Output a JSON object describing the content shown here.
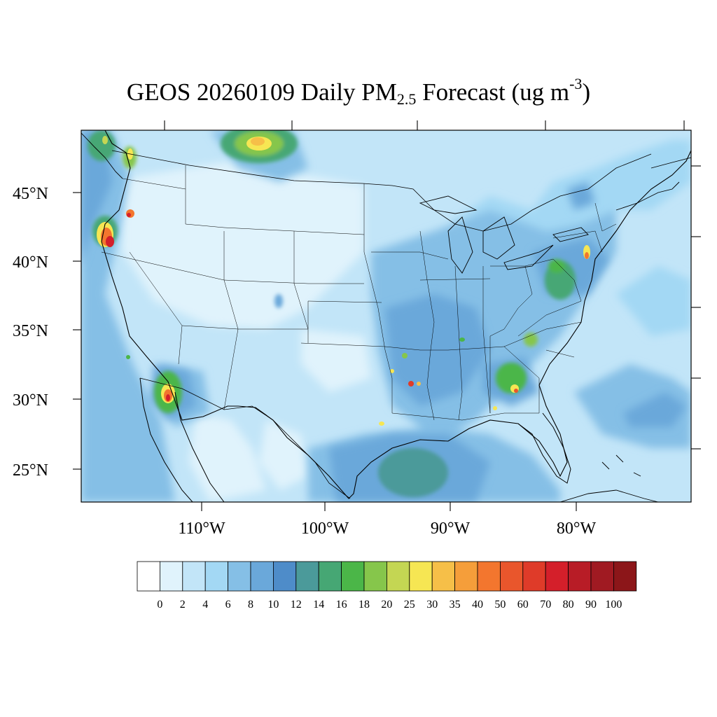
{
  "title": {
    "prefix": "GEOS 20260109 Daily PM",
    "subscript": "2.5",
    "middle": " Forecast (ug m",
    "superscript": "-3",
    "suffix": ")"
  },
  "map": {
    "lat_labels": [
      "45°N",
      "40°N",
      "35°N",
      "30°N",
      "25°N"
    ],
    "lon_labels": [
      "110°W",
      "100°W",
      "90°W",
      "80°W"
    ],
    "background_color": "#c2e5f8",
    "hotspots": [
      {
        "name": "northern-california",
        "level": 70
      },
      {
        "name": "southern-oregon",
        "level": 60
      },
      {
        "name": "arizona-sonora",
        "level": 70
      },
      {
        "name": "montana-saskatchewan",
        "level": 30
      },
      {
        "name": "washington",
        "level": 20
      },
      {
        "name": "georgia",
        "level": 60
      },
      {
        "name": "new-jersey",
        "level": 30
      },
      {
        "name": "maryland-virginia",
        "level": 16
      },
      {
        "name": "arkansas-louisiana",
        "level": 60
      },
      {
        "name": "gulf-of-mexico",
        "level": 12
      }
    ]
  },
  "colorbar": {
    "labels": [
      "0",
      "2",
      "4",
      "6",
      "8",
      "10",
      "12",
      "14",
      "16",
      "18",
      "20",
      "25",
      "30",
      "35",
      "40",
      "50",
      "60",
      "70",
      "80",
      "90",
      "100"
    ],
    "colors": [
      "#ffffff",
      "#e0f3fc",
      "#c2e5f8",
      "#a3d8f4",
      "#85bfe6",
      "#6aa8da",
      "#4e8cc9",
      "#4b9a9a",
      "#46a774",
      "#4bb648",
      "#86c64b",
      "#c4d653",
      "#f6e653",
      "#f6bf48",
      "#f59e3a",
      "#f3762e",
      "#e9562c",
      "#df3b29",
      "#d41f2a",
      "#b81c26",
      "#a01a22",
      "#8c1619"
    ]
  }
}
